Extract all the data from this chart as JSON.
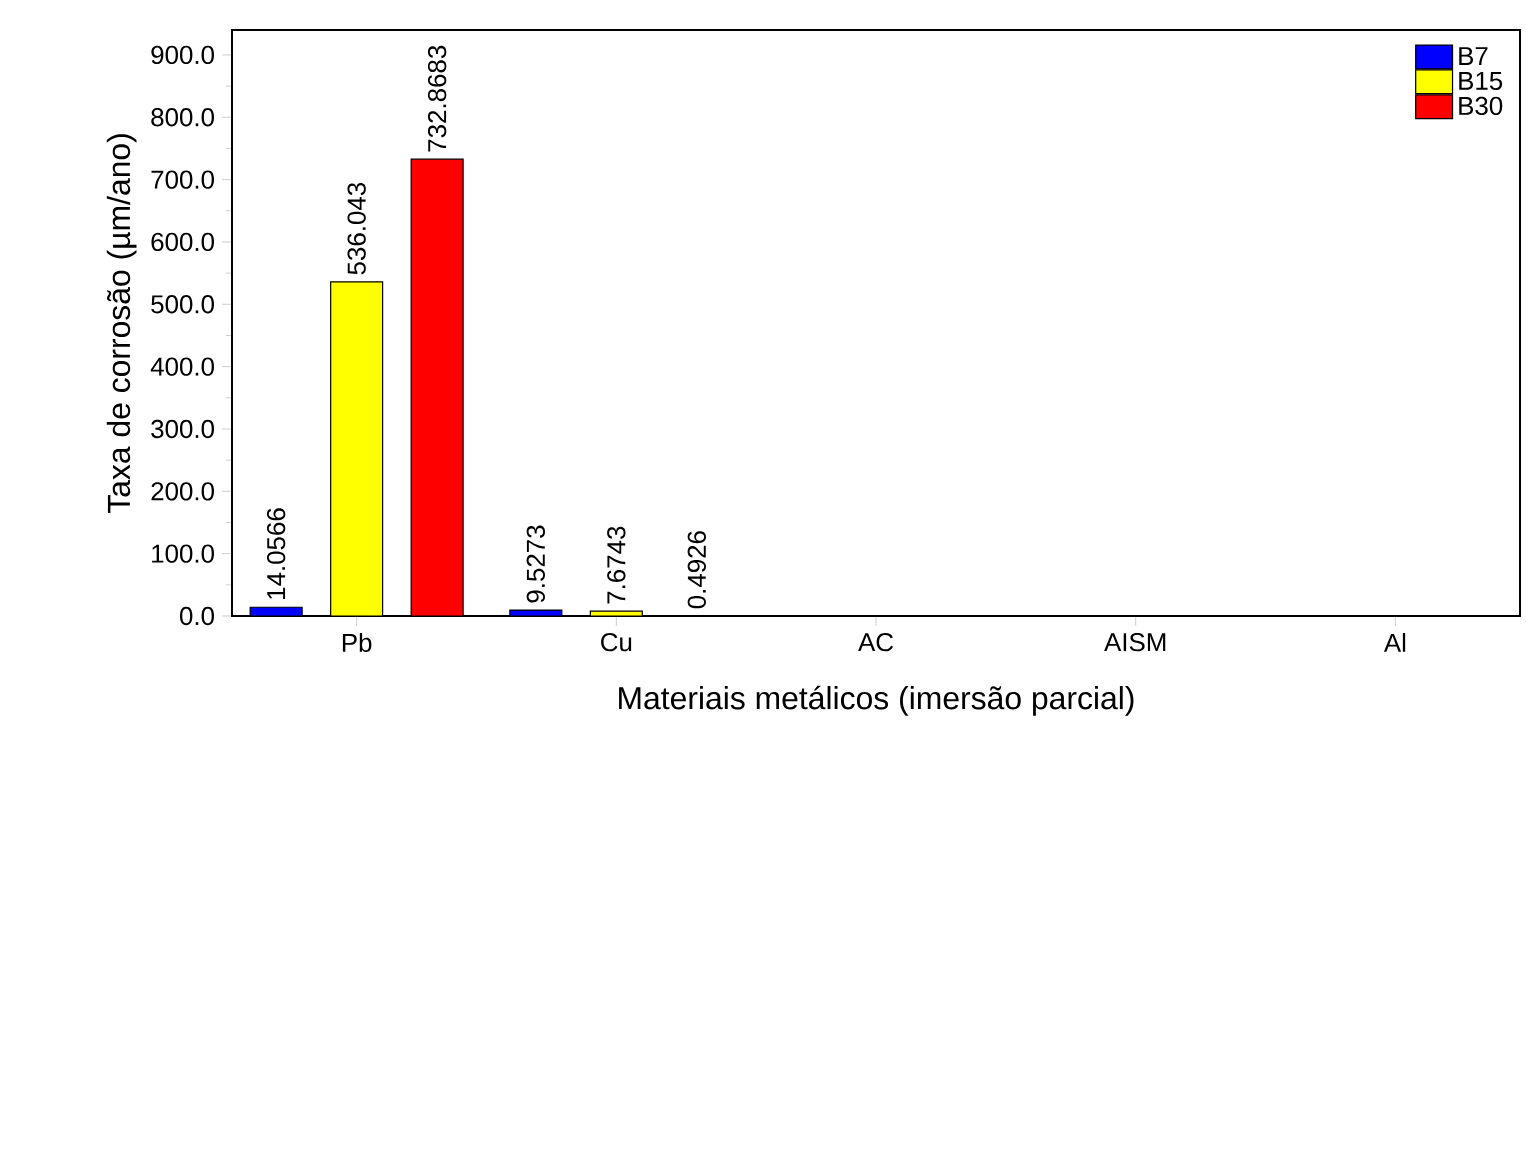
{
  "chart_data": {
    "type": "bar",
    "xlabel": "Materiais metálicos (imersão parcial)",
    "ylabel": "Taxa de corrosão (µm/ano)",
    "categories": [
      "Pb",
      "Cu",
      "AC",
      "AISM",
      "Al"
    ],
    "series": [
      {
        "name": "B7",
        "color": "#0000ff",
        "values": [
          14.0566,
          9.5273,
          null,
          null,
          null
        ],
        "value_labels": [
          "14.0566",
          "9.5273",
          null,
          null,
          null
        ]
      },
      {
        "name": "B15",
        "color": "#ffff00",
        "values": [
          536.043,
          7.6743,
          null,
          null,
          null
        ],
        "value_labels": [
          "536.043",
          "7.6743",
          null,
          null,
          null
        ]
      },
      {
        "name": "B30",
        "color": "#ff0000",
        "values": [
          732.8683,
          0.4926,
          null,
          null,
          null
        ],
        "value_labels": [
          "732.8683",
          "0.4926",
          null,
          null,
          null
        ]
      }
    ],
    "ylim": [
      0,
      940
    ],
    "yticks": [
      {
        "value": 0,
        "label": "0.0"
      },
      {
        "value": 100,
        "label": "100.0"
      },
      {
        "value": 200,
        "label": "200.0"
      },
      {
        "value": 300,
        "label": "300.0"
      },
      {
        "value": 400,
        "label": "400.0"
      },
      {
        "value": 500,
        "label": "500.0"
      },
      {
        "value": 600,
        "label": "600.0"
      },
      {
        "value": 700,
        "label": "700.0"
      },
      {
        "value": 800,
        "label": "800.0"
      },
      {
        "value": 900,
        "label": "900.0"
      }
    ],
    "legend": "top right"
  }
}
